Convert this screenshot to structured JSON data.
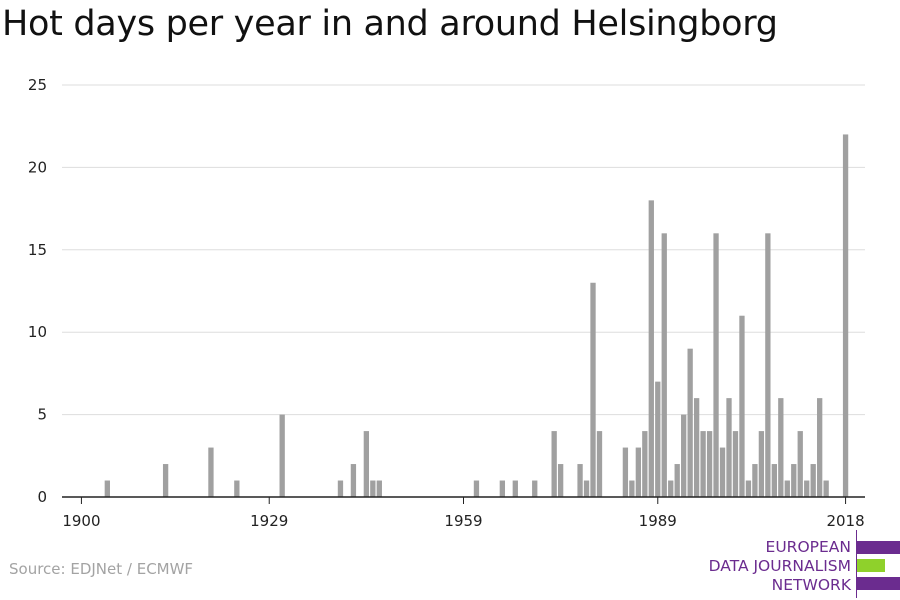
{
  "title": "Hot days per year in and around Helsingborg",
  "source": "Source: EDJNet / ECMWF",
  "logo": {
    "lines": [
      "EUROPEAN",
      "DATA JOURNALISM",
      "NETWORK"
    ],
    "colors": {
      "purple": "#6b2c8f",
      "green": "#8fd12b"
    }
  },
  "colors": {
    "bar": "#a0a0a0",
    "grid": "#dddddd",
    "axis": "#222222"
  },
  "chart_data": {
    "type": "bar",
    "title": "Hot days per year in and around Helsingborg",
    "xlabel": "",
    "ylabel": "",
    "ylim": [
      0,
      25
    ],
    "yticks": [
      0,
      5,
      10,
      15,
      20,
      25
    ],
    "xlim": [
      1897,
      2021
    ],
    "xticks": [
      1900,
      1929,
      1959,
      1989,
      2018
    ],
    "grid": true,
    "x": [
      1904,
      1913,
      1920,
      1924,
      1931,
      1940,
      1942,
      1944,
      1945,
      1946,
      1961,
      1965,
      1967,
      1970,
      1973,
      1974,
      1977,
      1978,
      1979,
      1980,
      1984,
      1985,
      1986,
      1987,
      1988,
      1989,
      1990,
      1991,
      1992,
      1993,
      1994,
      1995,
      1996,
      1997,
      1998,
      1999,
      2000,
      2001,
      2002,
      2003,
      2004,
      2005,
      2006,
      2007,
      2008,
      2009,
      2010,
      2011,
      2012,
      2013,
      2014,
      2015,
      2018
    ],
    "values": [
      1,
      2,
      3,
      1,
      5,
      1,
      2,
      4,
      1,
      1,
      1,
      1,
      1,
      1,
      4,
      2,
      2,
      1,
      13,
      4,
      3,
      1,
      3,
      4,
      18,
      7,
      16,
      1,
      2,
      5,
      9,
      6,
      4,
      4,
      16,
      3,
      6,
      4,
      11,
      1,
      2,
      4,
      16,
      2,
      6,
      1,
      2,
      4,
      1,
      2,
      6,
      1,
      22
    ]
  }
}
